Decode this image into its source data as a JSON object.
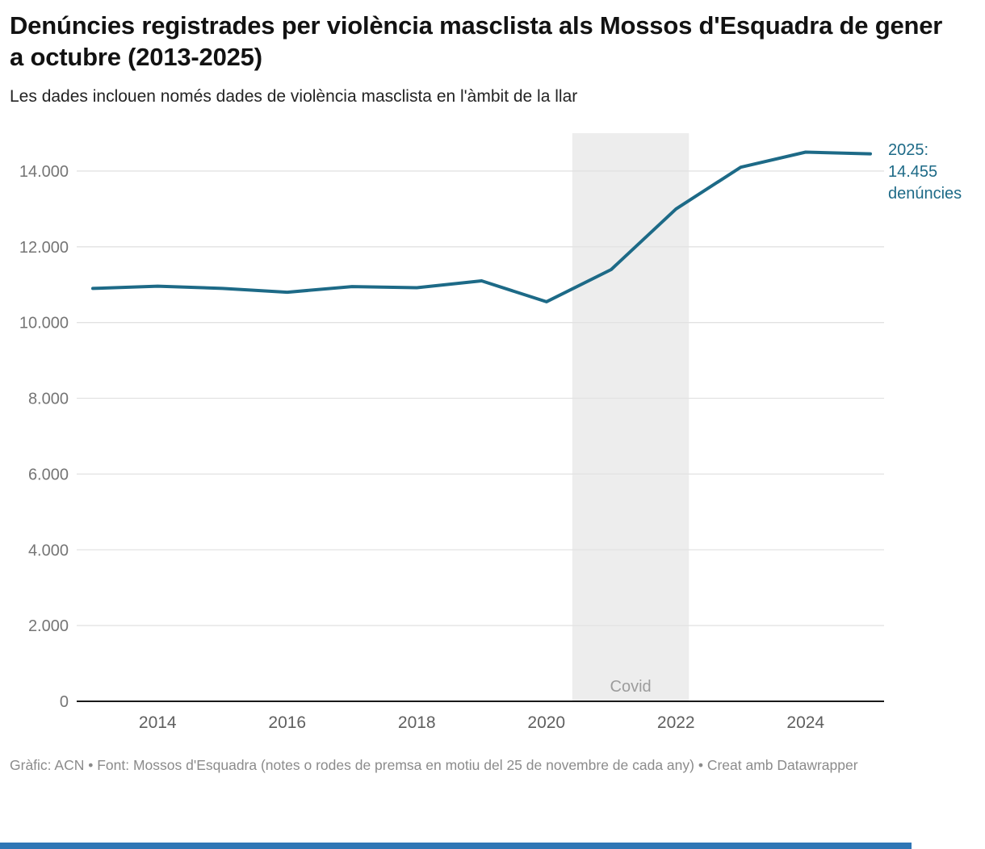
{
  "header": {
    "title": "Denúncies registrades per violència masclista als Mossos d'Esquadra de gener a octubre (2013-2025)",
    "subtitle": "Les dades inclouen només dades de violència masclista en l'àmbit de la llar"
  },
  "annotation": {
    "text": "2025:\n14.455\ndenúncies"
  },
  "footer": {
    "credit": "Gràfic: ACN • Font: Mossos d'Esquadra (notes o rodes de premsa en motiu del 25 de novembre de cada any) • Creat amb Datawrapper"
  },
  "colors": {
    "line": "#1d6a87",
    "annotation": "#1d6a87",
    "band": "#ededed",
    "band_label": "#9c9c9c",
    "grid": "#e2e2e2",
    "axis": "#1a1a1a",
    "y_tick_text": "#757575",
    "x_tick_text": "#5f5f5f",
    "footer_bar": "#2f76b5"
  },
  "chart_data": {
    "type": "line",
    "title": "Denúncies registrades per violència masclista als Mossos d'Esquadra de gener a octubre (2013-2025)",
    "subtitle": "Les dades inclouen només dades de violència masclista en l'àmbit de la llar",
    "xlabel": "",
    "ylabel": "",
    "x": [
      2013,
      2014,
      2015,
      2016,
      2017,
      2018,
      2019,
      2020,
      2021,
      2022,
      2023,
      2024,
      2025
    ],
    "series": [
      {
        "name": "Denúncies",
        "values": [
          10900,
          10960,
          10900,
          10800,
          10950,
          10920,
          11100,
          10550,
          11400,
          13000,
          14100,
          14500,
          14455
        ]
      }
    ],
    "xlim": [
      2013,
      2025
    ],
    "ylim": [
      0,
      15000
    ],
    "grid": true,
    "legend": "none",
    "y_ticks": [
      {
        "value": 0,
        "label": "0"
      },
      {
        "value": 2000,
        "label": "2.000"
      },
      {
        "value": 4000,
        "label": "4.000"
      },
      {
        "value": 6000,
        "label": "6.000"
      },
      {
        "value": 8000,
        "label": "8.000"
      },
      {
        "value": 10000,
        "label": "10.000"
      },
      {
        "value": 12000,
        "label": "12.000"
      },
      {
        "value": 14000,
        "label": "14.000"
      }
    ],
    "x_ticks": [
      {
        "value": 2014,
        "label": "2014"
      },
      {
        "value": 2016,
        "label": "2016"
      },
      {
        "value": 2018,
        "label": "2018"
      },
      {
        "value": 2020,
        "label": "2020"
      },
      {
        "value": 2022,
        "label": "2022"
      },
      {
        "value": 2024,
        "label": "2024"
      }
    ],
    "band": {
      "from": 2020.4,
      "to": 2022.2,
      "label": "Covid"
    },
    "annotation_point": {
      "year": 2025,
      "value": 14455,
      "label": "2025: 14.455 denúncies"
    }
  }
}
